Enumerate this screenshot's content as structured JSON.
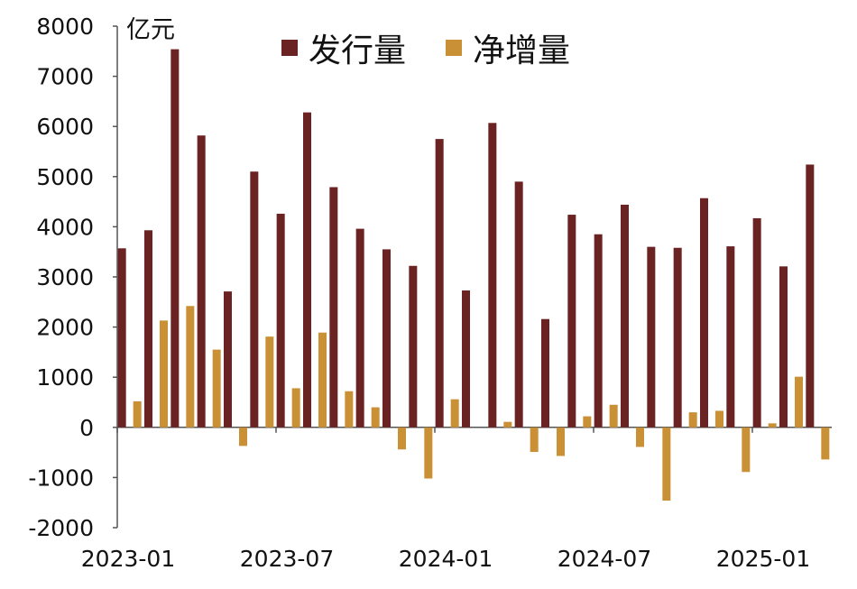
{
  "chart_data": {
    "type": "bar",
    "unit_label": "亿元",
    "ylim": [
      -2000,
      8000
    ],
    "y_ticks": [
      8000,
      7000,
      6000,
      5000,
      4000,
      3000,
      2000,
      1000,
      0,
      -1000,
      -2000
    ],
    "x_tick_labels": [
      "2023-01",
      "2023-07",
      "2024-01",
      "2024-07",
      "2025-01"
    ],
    "x_tick_months": [
      "2023-01",
      "2023-07",
      "2024-01",
      "2024-07",
      "2025-01"
    ],
    "months": [
      "2023-01",
      "2023-02",
      "2023-03",
      "2023-04",
      "2023-05",
      "2023-06",
      "2023-07",
      "2023-08",
      "2023-09",
      "2023-10",
      "2023-11",
      "2023-12",
      "2024-01",
      "2024-02",
      "2024-03",
      "2024-04",
      "2024-05",
      "2024-06",
      "2024-07",
      "2024-08",
      "2024-09",
      "2024-10",
      "2024-11",
      "2024-12",
      "2025-01",
      "2025-02",
      "2025-03"
    ],
    "legend_position": "top-center",
    "grid": false,
    "series": [
      {
        "name": "发行量",
        "color": "#6B2222",
        "values": [
          3570,
          3930,
          7540,
          5820,
          2710,
          5100,
          4260,
          6280,
          4790,
          3960,
          3550,
          3220,
          5750,
          2730,
          6070,
          4900,
          2160,
          4240,
          3850,
          4440,
          3600,
          3580,
          4570,
          3610,
          4170,
          3210,
          5240
        ]
      },
      {
        "name": "净增量",
        "color": "#C99035",
        "values": [
          520,
          2130,
          2420,
          1550,
          -370,
          1810,
          780,
          1890,
          720,
          400,
          -440,
          -1020,
          560,
          0,
          110,
          -490,
          -570,
          220,
          450,
          -390,
          -1460,
          300,
          330,
          -890,
          80,
          1010,
          -640
        ]
      }
    ]
  }
}
